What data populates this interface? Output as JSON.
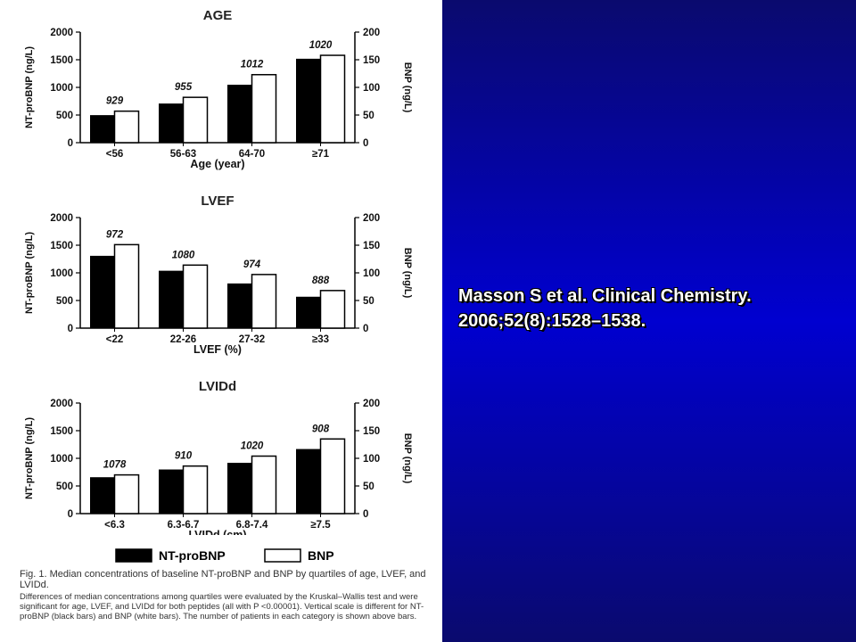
{
  "citation": {
    "line1": "Masson S et al. Clinical Chemistry.",
    "line2": "2006;52(8):1528–1538."
  },
  "legend": {
    "nt_label": "NT-proBNP",
    "bnp_label": "BNP"
  },
  "caption": {
    "main": "Fig. 1. Median concentrations of baseline NT-proBNP and BNP by quartiles of age, LVEF, and LVIDd.",
    "note": "Differences of median concentrations among quartiles were evaluated by the Kruskal–Wallis test and were significant for age, LVEF, and LVIDd for both peptides (all with P <0.00001). Vertical scale is different for NT-proBNP (black bars) and BNP (white bars). The number of patients in each category is shown above bars."
  },
  "colors": {
    "nt_bar": "#000000",
    "bnp_bar": "#ffffff",
    "right_panel": "#0000c8"
  },
  "chart_data": [
    {
      "type": "bar",
      "title": "AGE",
      "xlabel": "Age (year)",
      "ylabel_left": "NT-proBNP (ng/L)",
      "ylabel_right": "BNP (ng/L)",
      "ylim_left": [
        0,
        2000
      ],
      "ylim_right": [
        0,
        200
      ],
      "yticks_left": [
        "0",
        "500",
        "1000",
        "1500",
        "2000"
      ],
      "yticks_right": [
        "0",
        "50",
        "100",
        "150",
        "200"
      ],
      "categories": [
        "<56",
        "56-63",
        "64-70",
        "≥71"
      ],
      "series": [
        {
          "name": "NT-proBNP",
          "axis": "left",
          "values": [
            490,
            700,
            1040,
            1510
          ]
        },
        {
          "name": "BNP",
          "axis": "right",
          "values": [
            57,
            82,
            123,
            158
          ]
        }
      ],
      "annotations": [
        "929",
        "955",
        "1012",
        "1020"
      ]
    },
    {
      "type": "bar",
      "title": "LVEF",
      "xlabel": "LVEF (%)",
      "ylabel_left": "NT-proBNP (ng/L)",
      "ylabel_right": "BNP (ng/L)",
      "ylim_left": [
        0,
        2000
      ],
      "ylim_right": [
        0,
        200
      ],
      "yticks_left": [
        "0",
        "500",
        "1000",
        "1500",
        "2000"
      ],
      "yticks_right": [
        "0",
        "50",
        "100",
        "150",
        "200"
      ],
      "categories": [
        "<22",
        "22-26",
        "27-32",
        "≥33"
      ],
      "series": [
        {
          "name": "NT-proBNP",
          "axis": "left",
          "values": [
            1300,
            1030,
            800,
            560
          ]
        },
        {
          "name": "BNP",
          "axis": "right",
          "values": [
            151,
            114,
            97,
            68
          ]
        }
      ],
      "annotations": [
        "972",
        "1080",
        "974",
        "888"
      ]
    },
    {
      "type": "bar",
      "title": "LVIDd",
      "xlabel": "LVIDd (cm)",
      "ylabel_left": "NT-proBNP (ng/L)",
      "ylabel_right": "BNP (ng/L)",
      "ylim_left": [
        0,
        2000
      ],
      "ylim_right": [
        0,
        200
      ],
      "yticks_left": [
        "0",
        "500",
        "1000",
        "1500",
        "2000"
      ],
      "yticks_right": [
        "0",
        "50",
        "100",
        "150",
        "200"
      ],
      "categories": [
        "<6.3",
        "6.3-6.7",
        "6.8-7.4",
        "≥7.5"
      ],
      "series": [
        {
          "name": "NT-proBNP",
          "axis": "left",
          "values": [
            650,
            790,
            910,
            1160
          ]
        },
        {
          "name": "BNP",
          "axis": "right",
          "values": [
            70,
            86,
            104,
            135
          ]
        }
      ],
      "annotations": [
        "1078",
        "910",
        "1020",
        "908"
      ]
    }
  ]
}
